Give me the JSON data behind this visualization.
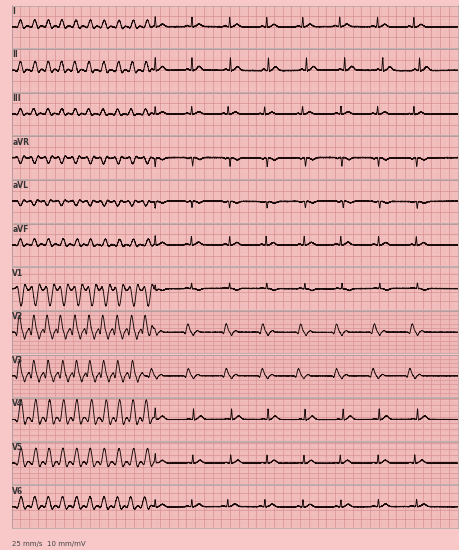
{
  "bg_color": "#f8c8c8",
  "grid_minor_color": "#e8a8a8",
  "grid_major_color": "#c87878",
  "ecg_color": "#1a0a0a",
  "leads": [
    "I",
    "II",
    "III",
    "aVR",
    "aVL",
    "aVF",
    "V1",
    "V2",
    "V3",
    "V4",
    "V5",
    "V6"
  ],
  "label_fontsize": 5.5,
  "footer_text": "25 mm/s  10 mm/mV",
  "footer_fontsize": 5,
  "fig_width": 4.6,
  "fig_height": 5.5,
  "dpi": 100,
  "border_color": "#999999"
}
